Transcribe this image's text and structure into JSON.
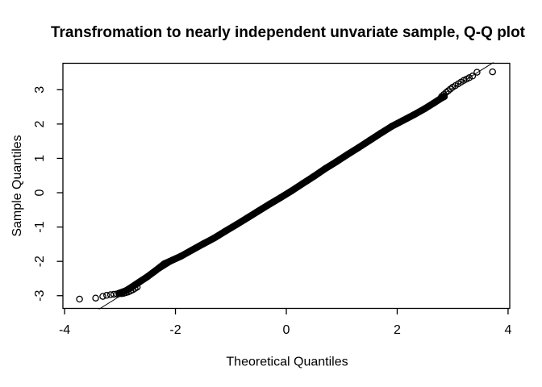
{
  "chart_data": {
    "type": "scatter",
    "variant": "normal-qq-plot",
    "title": "Transfromation to nearly independent unvariate sample, Q-Q plot",
    "xlabel": "Theoretical Quantiles",
    "ylabel": "Sample Quantiles",
    "xlim": [
      -4.03,
      4.03
    ],
    "ylim": [
      -3.37,
      3.77
    ],
    "x_ticks": [
      -4,
      -2,
      0,
      2,
      4
    ],
    "y_ticks": [
      -3,
      -2,
      -1,
      0,
      1,
      2,
      3
    ],
    "grid": false,
    "legend": "none",
    "marker": "open-circle",
    "colors": {
      "points": "#000000",
      "reference_line": "#000000",
      "axis": "#000000",
      "background": "#ffffff"
    },
    "reference_line": {
      "slope": 1.01,
      "intercept": 0.02
    },
    "dense_band_points": [
      [
        -3.02,
        -2.93
      ],
      [
        -2.9,
        -2.86
      ],
      [
        -2.78,
        -2.74
      ],
      [
        -2.65,
        -2.6
      ],
      [
        -2.5,
        -2.44
      ],
      [
        -2.35,
        -2.26
      ],
      [
        -2.2,
        -2.07
      ],
      [
        -2.05,
        -1.96
      ],
      [
        -1.9,
        -1.85
      ],
      [
        -1.7,
        -1.67
      ],
      [
        -1.5,
        -1.49
      ],
      [
        -1.3,
        -1.32
      ],
      [
        -1.1,
        -1.12
      ],
      [
        -0.9,
        -0.93
      ],
      [
        -0.7,
        -0.73
      ],
      [
        -0.5,
        -0.53
      ],
      [
        -0.3,
        -0.33
      ],
      [
        -0.1,
        -0.14
      ],
      [
        0.1,
        0.06
      ],
      [
        0.3,
        0.27
      ],
      [
        0.5,
        0.48
      ],
      [
        0.7,
        0.7
      ],
      [
        0.9,
        0.9
      ],
      [
        1.1,
        1.11
      ],
      [
        1.3,
        1.31
      ],
      [
        1.5,
        1.52
      ],
      [
        1.7,
        1.73
      ],
      [
        1.9,
        1.93
      ],
      [
        2.1,
        2.1
      ],
      [
        2.3,
        2.27
      ],
      [
        2.5,
        2.45
      ],
      [
        2.65,
        2.6
      ],
      [
        2.78,
        2.74
      ],
      [
        2.85,
        2.8
      ]
    ],
    "lower_tail_points": [
      [
        -3.73,
        -3.1
      ],
      [
        -3.44,
        -3.07
      ],
      [
        -3.31,
        -3.02
      ],
      [
        -3.24,
        -2.99
      ],
      [
        -3.17,
        -2.97
      ],
      [
        -3.11,
        -2.96
      ],
      [
        -3.06,
        -2.95
      ],
      [
        -3.01,
        -2.94
      ],
      [
        -2.97,
        -2.94
      ],
      [
        -2.93,
        -2.93
      ],
      [
        -2.89,
        -2.91
      ],
      [
        -2.85,
        -2.89
      ],
      [
        -2.81,
        -2.86
      ],
      [
        -2.77,
        -2.83
      ],
      [
        -2.73,
        -2.79
      ],
      [
        -2.69,
        -2.75
      ]
    ],
    "upper_tail_points": [
      [
        2.8,
        2.8
      ],
      [
        2.84,
        2.86
      ],
      [
        2.88,
        2.92
      ],
      [
        2.92,
        2.97
      ],
      [
        2.96,
        3.02
      ],
      [
        3.0,
        3.07
      ],
      [
        3.05,
        3.12
      ],
      [
        3.1,
        3.17
      ],
      [
        3.15,
        3.22
      ],
      [
        3.2,
        3.27
      ],
      [
        3.25,
        3.31
      ],
      [
        3.3,
        3.35
      ],
      [
        3.36,
        3.4
      ],
      [
        3.44,
        3.51
      ],
      [
        3.72,
        3.52
      ]
    ]
  }
}
